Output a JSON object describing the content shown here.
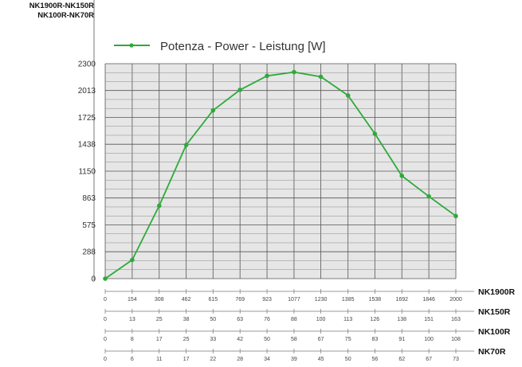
{
  "header": {
    "line1": "NK1900R-NK150R",
    "line2": "NK100R-NK70R"
  },
  "colors": {
    "line": "#2eaa3a",
    "plot_bg": "#e6e6e6",
    "grid": "#555555"
  },
  "chart_data": {
    "type": "line",
    "title": "",
    "legend": {
      "label": "Potenza - Power - Leistung [W]",
      "position": "top-left"
    },
    "ylim": [
      0,
      2300
    ],
    "yticks": [
      0,
      288,
      575,
      863,
      1150,
      1438,
      1725,
      2013,
      2300
    ],
    "grid": true,
    "series": [
      {
        "name": "Potenza - Power - Leistung [W]",
        "x": [
          0,
          154,
          308,
          462,
          615,
          769,
          923,
          1077,
          1230,
          1385,
          1538,
          1692,
          1846,
          2000
        ],
        "values": [
          0,
          200,
          780,
          1430,
          1800,
          2020,
          2170,
          2210,
          2160,
          1960,
          1550,
          1100,
          880,
          670
        ]
      }
    ],
    "x_scales": [
      {
        "name": "NK1900R",
        "ticks": [
          "0",
          "154",
          "308",
          "462",
          "615",
          "769",
          "923",
          "1077",
          "1230",
          "1385",
          "1538",
          "1692",
          "1846",
          "2000"
        ]
      },
      {
        "name": "NK150R",
        "ticks": [
          "0",
          "13",
          "25",
          "38",
          "50",
          "63",
          "76",
          "88",
          "100",
          "113",
          "126",
          "138",
          "151",
          "163"
        ]
      },
      {
        "name": "NK100R",
        "ticks": [
          "0",
          "8",
          "17",
          "25",
          "33",
          "42",
          "50",
          "58",
          "67",
          "75",
          "83",
          "91",
          "100",
          "108"
        ]
      },
      {
        "name": "NK70R",
        "ticks": [
          "0",
          "6",
          "11",
          "17",
          "22",
          "28",
          "34",
          "39",
          "45",
          "50",
          "56",
          "62",
          "67",
          "73"
        ]
      }
    ]
  }
}
